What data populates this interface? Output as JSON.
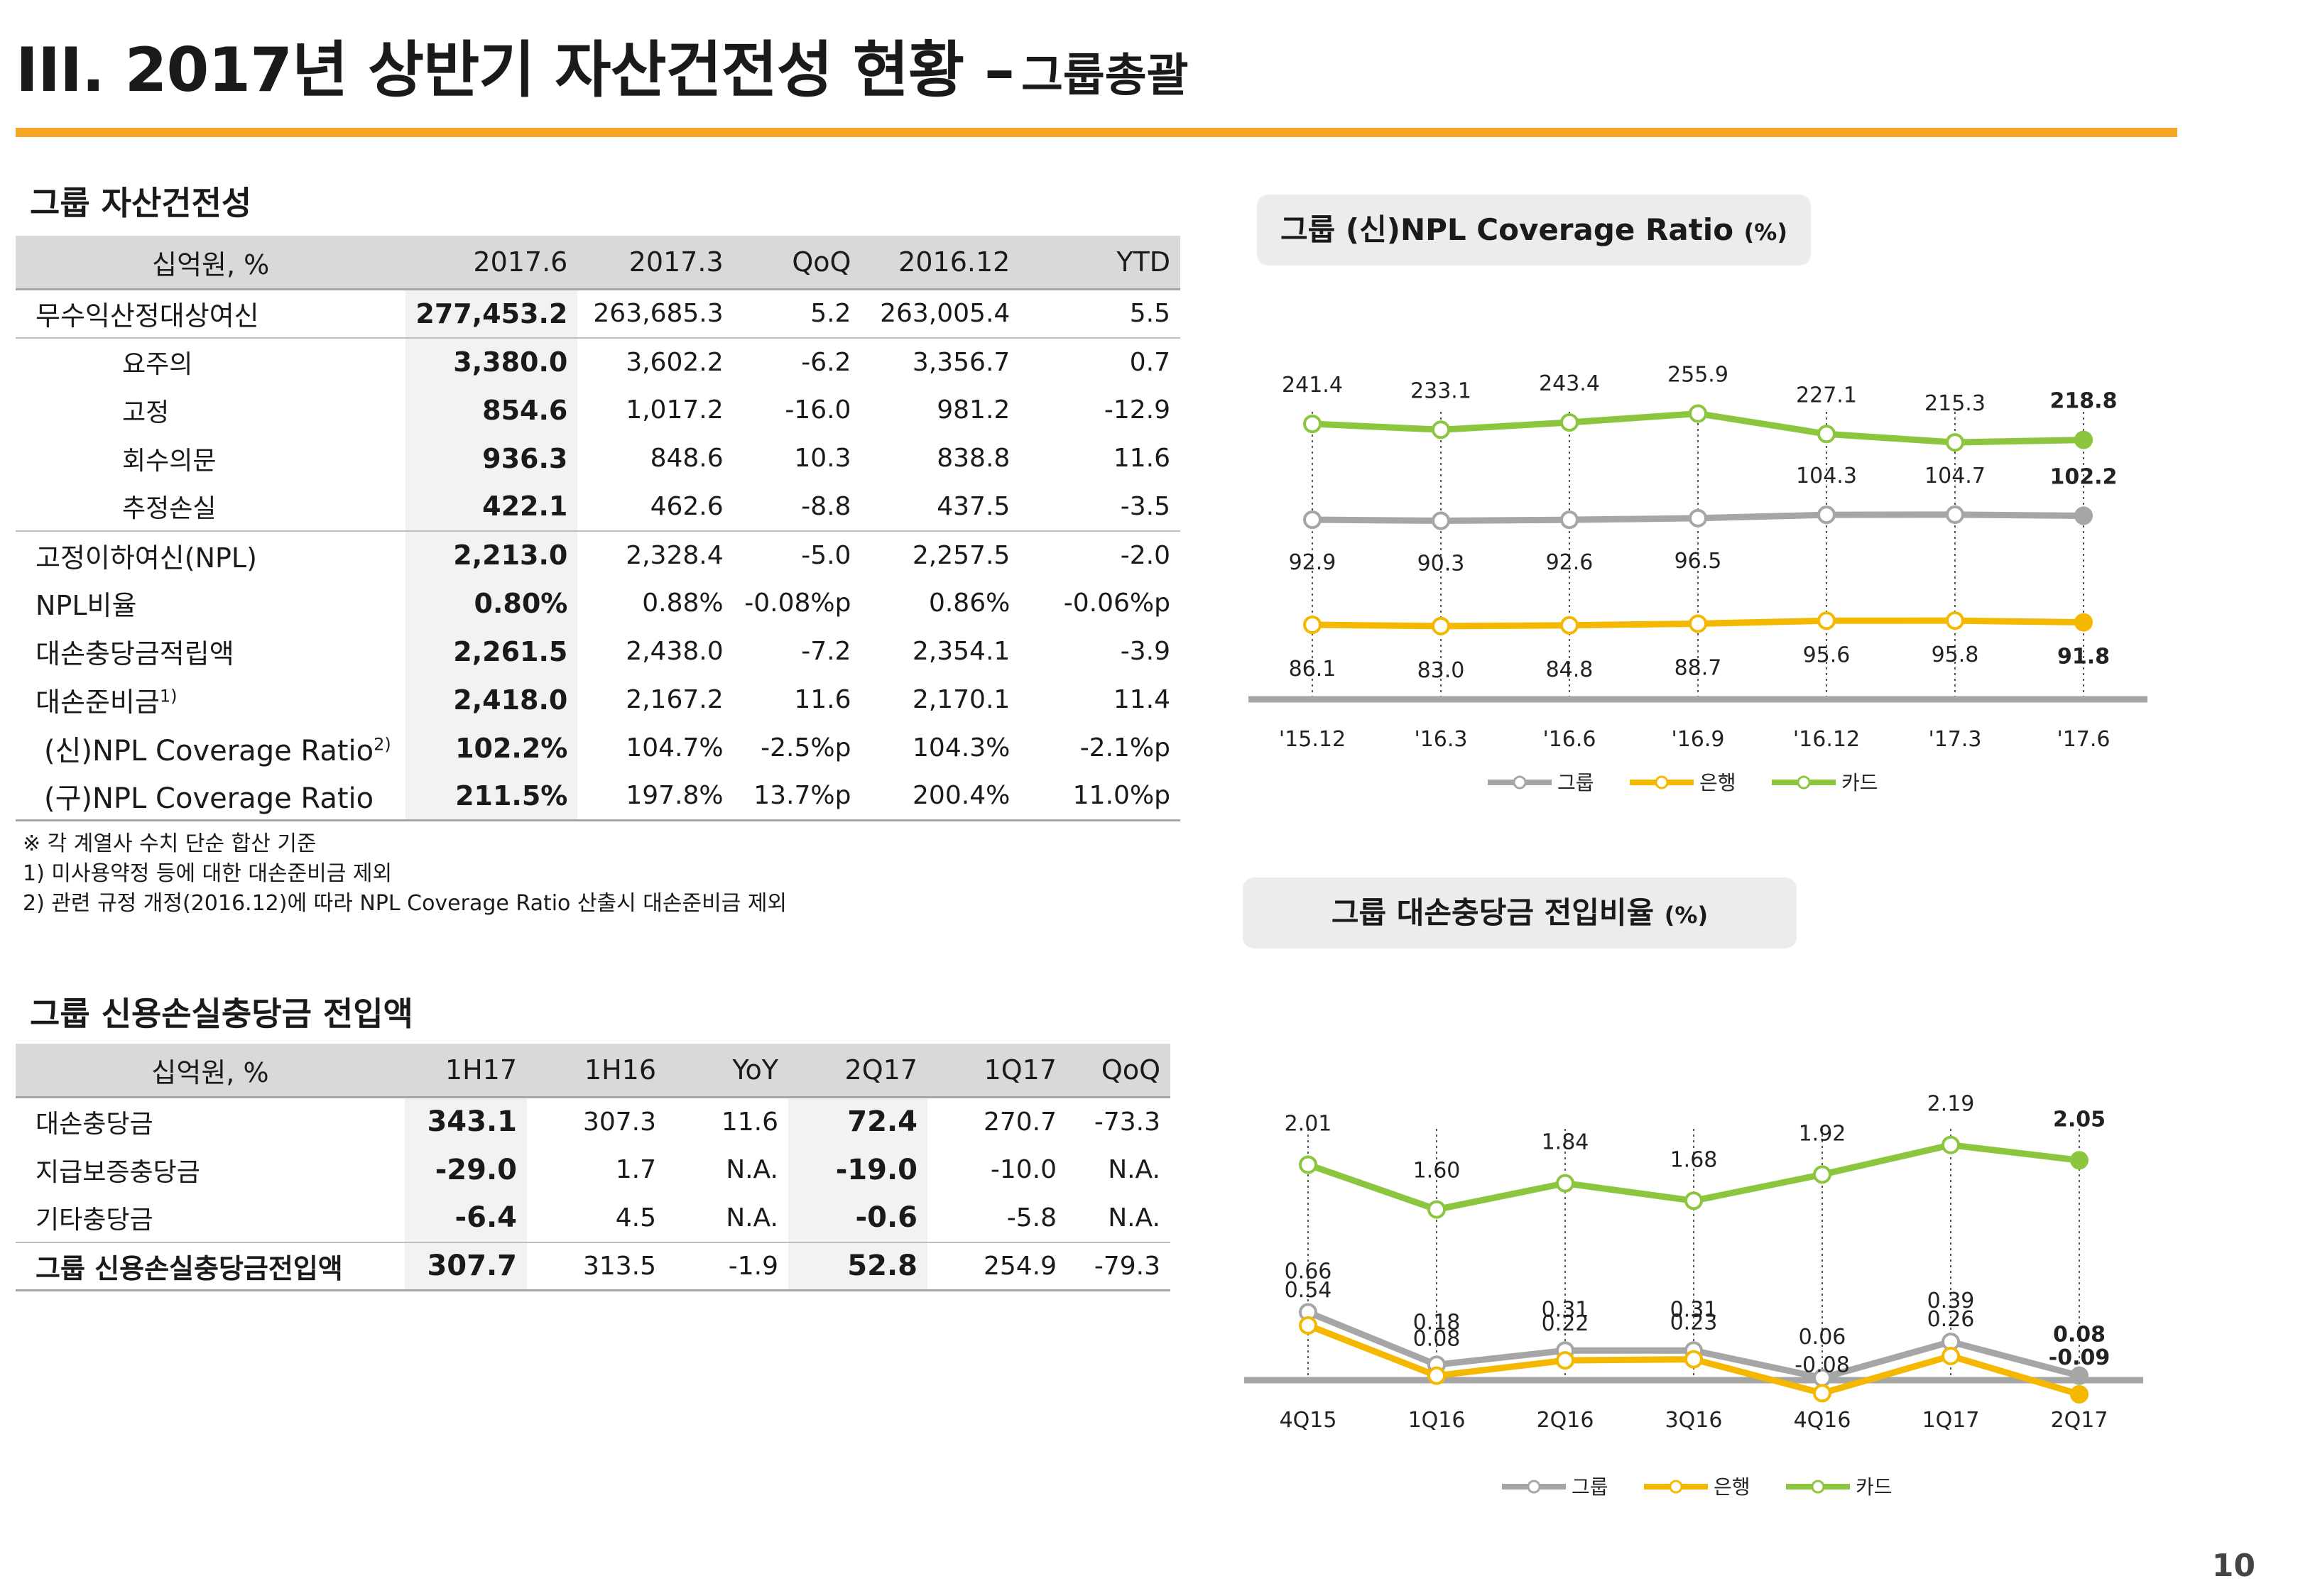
{
  "title": {
    "main": "III. 2017년 상반기 자산건전성 현황 –",
    "sub": "그룹총괄"
  },
  "section1": {
    "heading": "그룹 자산건전성",
    "headers": [
      "십억원, %",
      "2017.6",
      "2017.3",
      "QoQ",
      "2016.12",
      "YTD"
    ],
    "rows": [
      {
        "label": "무수익산정대상여신",
        "values": [
          "277,453.2",
          "263,685.3",
          "5.2",
          "263,005.4",
          "5.5"
        ]
      },
      {
        "label": "요주의",
        "values": [
          "3,380.0",
          "3,602.2",
          "-6.2",
          "3,356.7",
          "0.7"
        ]
      },
      {
        "label": "고정",
        "values": [
          "854.6",
          "1,017.2",
          "-16.0",
          "981.2",
          "-12.9"
        ]
      },
      {
        "label": "회수의문",
        "values": [
          "936.3",
          "848.6",
          "10.3",
          "838.8",
          "11.6"
        ]
      },
      {
        "label": "추정손실",
        "values": [
          "422.1",
          "462.6",
          "-8.8",
          "437.5",
          "-3.5"
        ]
      },
      {
        "label": "고정이하여신(NPL)",
        "values": [
          "2,213.0",
          "2,328.4",
          "-5.0",
          "2,257.5",
          "-2.0"
        ]
      },
      {
        "label": "NPL비율",
        "values": [
          "0.80%",
          "0.88%",
          "-0.08%p",
          "0.86%",
          "-0.06%p"
        ]
      },
      {
        "label": "대손충당금적립액",
        "values": [
          "2,261.5",
          "2,438.0",
          "-7.2",
          "2,354.1",
          "-3.9"
        ]
      },
      {
        "label": "대손준비금",
        "sup": "1)",
        "values": [
          "2,418.0",
          "2,167.2",
          "11.6",
          "2,170.1",
          "11.4"
        ]
      },
      {
        "label": "(신)NPL Coverage Ratio",
        "sup": "2)",
        "values": [
          "102.2%",
          "104.7%",
          "-2.5%p",
          "104.3%",
          "-2.1%p"
        ]
      },
      {
        "label": "(구)NPL Coverage Ratio",
        "values": [
          "211.5%",
          "197.8%",
          "13.7%p",
          "200.4%",
          "11.0%p"
        ]
      }
    ],
    "notes": [
      "※ 각 계열사 수치 단순 합산 기준",
      "1) 미사용약정 등에 대한 대손준비금 제외",
      "2) 관련 규정 개정(2016.12)에 따라 NPL Coverage Ratio 산출시 대손준비금 제외"
    ]
  },
  "section2": {
    "heading": "그룹 신용손실충당금 전입액",
    "headers": [
      "십억원, %",
      "1H17",
      "1H16",
      "YoY",
      "2Q17",
      "1Q17",
      "QoQ"
    ],
    "rows": [
      {
        "label": "대손충당금",
        "values": [
          "343.1",
          "307.3",
          "11.6",
          "72.4",
          "270.7",
          "-73.3"
        ]
      },
      {
        "label": "지급보증충당금",
        "values": [
          "-29.0",
          "1.7",
          "N.A.",
          "-19.0",
          "-10.0",
          "N.A."
        ]
      },
      {
        "label": "기타충당금",
        "values": [
          "-6.4",
          "4.5",
          "N.A.",
          "-0.6",
          "-5.8",
          "N.A."
        ]
      },
      {
        "label": "그룹 신용손실충당금전입액",
        "values": [
          "307.7",
          "313.5",
          "-1.9",
          "52.8",
          "254.9",
          "-79.3"
        ]
      }
    ]
  },
  "colors": {
    "group": "#a6a6a6",
    "bank": "#f5b800",
    "card": "#8cc63f",
    "accent": "#f5a623"
  },
  "chart_data": [
    {
      "type": "line",
      "title": "그룹 (신)NPL Coverage Ratio",
      "unit": "(%)",
      "categories": [
        "'15.12",
        "'16.3",
        "'16.6",
        "'16.9",
        "'16.12",
        "'17.3",
        "'17.6"
      ],
      "series": [
        {
          "name": "그룹",
          "values": [
            92.9,
            90.3,
            92.6,
            96.5,
            104.3,
            104.7,
            102.2
          ]
        },
        {
          "name": "은행",
          "values": [
            86.1,
            83.0,
            84.8,
            88.7,
            95.6,
            95.8,
            91.8
          ]
        },
        {
          "name": "카드",
          "values": [
            241.4,
            233.1,
            243.4,
            255.9,
            227.1,
            215.3,
            218.8
          ]
        }
      ],
      "labels": {
        "그룹": [
          "92.9",
          "90.3",
          "92.6",
          "96.5",
          "104.3",
          "104.7",
          "102.2"
        ],
        "은행": [
          "86.1",
          "83.0",
          "84.8",
          "88.7",
          "95.6",
          "95.8",
          "91.8"
        ],
        "카드": [
          "241.4",
          "233.1",
          "243.4",
          "255.9",
          "227.1",
          "215.3",
          "218.8"
        ]
      },
      "legend": "bottom"
    },
    {
      "type": "line",
      "title": "그룹 대손충당금 전입비율",
      "unit": "(%)",
      "categories": [
        "4Q15",
        "1Q16",
        "2Q16",
        "3Q16",
        "4Q16",
        "1Q17",
        "2Q17"
      ],
      "series": [
        {
          "name": "그룹",
          "values": [
            0.66,
            0.18,
            0.31,
            0.31,
            0.06,
            0.39,
            0.08
          ]
        },
        {
          "name": "은행",
          "values": [
            0.54,
            0.08,
            0.22,
            0.23,
            -0.08,
            0.26,
            -0.09
          ]
        },
        {
          "name": "카드",
          "values": [
            2.01,
            1.6,
            1.84,
            1.68,
            1.92,
            2.19,
            2.05
          ]
        }
      ],
      "labels": {
        "그룹": [
          "0.66",
          "0.18",
          "0.31",
          "0.31",
          "0.06",
          "0.39",
          "0.08"
        ],
        "은행": [
          "0.54",
          "0.08",
          "0.22",
          "0.23",
          "-0.08",
          "0.26",
          "-0.09"
        ],
        "카드": [
          "2.01",
          "1.60",
          "1.84",
          "1.68",
          "1.92",
          "2.19",
          "2.05"
        ]
      },
      "legend": "bottom"
    }
  ],
  "page_number": "10"
}
